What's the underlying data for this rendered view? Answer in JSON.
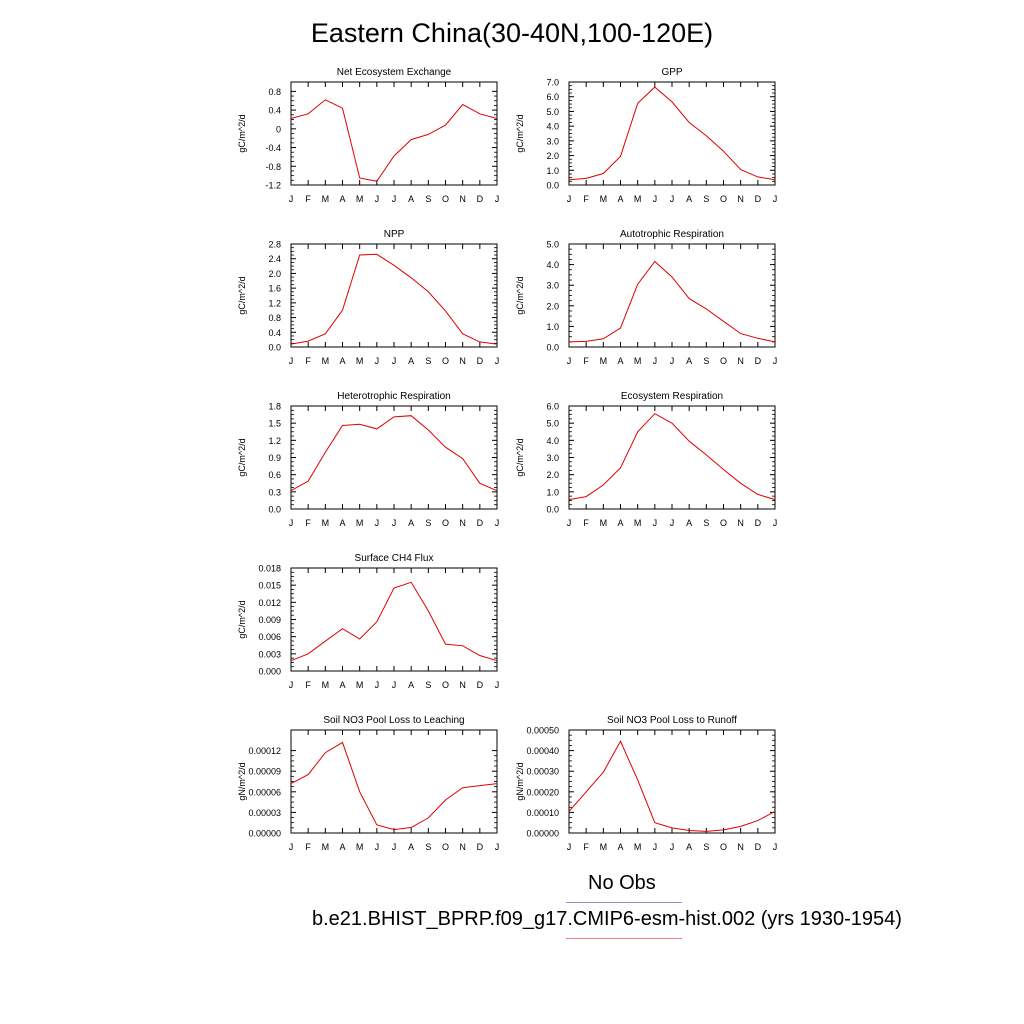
{
  "title": "Eastern China(30-40N,100-120E)",
  "legend": [
    {
      "label": "No Obs",
      "color": "#8f8fd0"
    },
    {
      "label": "b.e21.BHIST_BPRP.f09_g17.CMIP6-esm-hist.002 (yrs 1930-1954)",
      "color": "#f08080"
    }
  ],
  "chart_data": [
    {
      "type": "line",
      "title": "Net Ecosystem Exchange",
      "ylabel": "gC/m^2/d",
      "categories": [
        "J",
        "F",
        "M",
        "A",
        "M",
        "J",
        "J",
        "A",
        "S",
        "O",
        "N",
        "D",
        "J"
      ],
      "ylim": [
        -1.2,
        1.0
      ],
      "yticks": [
        "-1.2",
        "-0.8",
        "-0.4",
        "0",
        "0.4",
        "0.8"
      ],
      "ytick_values": [
        -1.2,
        -0.8,
        -0.4,
        0,
        0.4,
        0.8
      ],
      "series": [
        {
          "color": "#e00000",
          "values": [
            0.22,
            0.32,
            0.62,
            0.44,
            -1.05,
            -1.12,
            -0.58,
            -0.23,
            -0.12,
            0.08,
            0.52,
            0.32,
            0.22
          ]
        }
      ]
    },
    {
      "type": "line",
      "title": "GPP",
      "ylabel": "gC/m^2/d",
      "categories": [
        "J",
        "F",
        "M",
        "A",
        "M",
        "J",
        "J",
        "A",
        "S",
        "O",
        "N",
        "D",
        "J"
      ],
      "ylim": [
        0.0,
        7.0
      ],
      "yticks": [
        "0.0",
        "1.0",
        "2.0",
        "3.0",
        "4.0",
        "5.0",
        "6.0",
        "7.0"
      ],
      "ytick_values": [
        0,
        1,
        2,
        3,
        4,
        5,
        6,
        7
      ],
      "series": [
        {
          "color": "#e00000",
          "values": [
            0.35,
            0.45,
            0.78,
            1.95,
            5.55,
            6.65,
            5.65,
            4.25,
            3.35,
            2.3,
            1.05,
            0.55,
            0.35
          ]
        }
      ]
    },
    {
      "type": "line",
      "title": "NPP",
      "ylabel": "gC/m^2/d",
      "categories": [
        "J",
        "F",
        "M",
        "A",
        "M",
        "J",
        "J",
        "A",
        "S",
        "O",
        "N",
        "D",
        "J"
      ],
      "ylim": [
        0.0,
        2.8
      ],
      "yticks": [
        "0.0",
        "0.4",
        "0.8",
        "1.2",
        "1.6",
        "2.0",
        "2.4",
        "2.8"
      ],
      "ytick_values": [
        0,
        0.4,
        0.8,
        1.2,
        1.6,
        2.0,
        2.4,
        2.8
      ],
      "series": [
        {
          "color": "#e00000",
          "values": [
            0.08,
            0.16,
            0.36,
            1.0,
            2.5,
            2.52,
            2.22,
            1.88,
            1.5,
            0.98,
            0.36,
            0.14,
            0.08
          ]
        }
      ]
    },
    {
      "type": "line",
      "title": "Autotrophic Respiration",
      "ylabel": "gC/m^2/d",
      "categories": [
        "J",
        "F",
        "M",
        "A",
        "M",
        "J",
        "J",
        "A",
        "S",
        "O",
        "N",
        "D",
        "J"
      ],
      "ylim": [
        0.0,
        5.0
      ],
      "yticks": [
        "0.0",
        "1.0",
        "2.0",
        "3.0",
        "4.0",
        "5.0"
      ],
      "ytick_values": [
        0,
        1,
        2,
        3,
        4,
        5
      ],
      "series": [
        {
          "color": "#e00000",
          "values": [
            0.25,
            0.27,
            0.4,
            0.92,
            3.05,
            4.15,
            3.4,
            2.35,
            1.85,
            1.25,
            0.65,
            0.42,
            0.25
          ]
        }
      ]
    },
    {
      "type": "line",
      "title": "Heterotrophic Respiration",
      "ylabel": "gC/m^2/d",
      "categories": [
        "J",
        "F",
        "M",
        "A",
        "M",
        "J",
        "J",
        "A",
        "S",
        "O",
        "N",
        "D",
        "J"
      ],
      "ylim": [
        0.0,
        1.8
      ],
      "yticks": [
        "0.0",
        "0.3",
        "0.6",
        "0.9",
        "1.2",
        "1.5",
        "1.8"
      ],
      "ytick_values": [
        0,
        0.3,
        0.6,
        0.9,
        1.2,
        1.5,
        1.8
      ],
      "series": [
        {
          "color": "#e00000",
          "values": [
            0.32,
            0.49,
            0.99,
            1.46,
            1.48,
            1.4,
            1.61,
            1.63,
            1.38,
            1.08,
            0.88,
            0.45,
            0.32
          ]
        }
      ]
    },
    {
      "type": "line",
      "title": "Ecosystem Respiration",
      "ylabel": "gC/m^2/d",
      "categories": [
        "J",
        "F",
        "M",
        "A",
        "M",
        "J",
        "J",
        "A",
        "S",
        "O",
        "N",
        "D",
        "J"
      ],
      "ylim": [
        0.0,
        6.0
      ],
      "yticks": [
        "0.0",
        "1.0",
        "2.0",
        "3.0",
        "4.0",
        "5.0",
        "6.0"
      ],
      "ytick_values": [
        0,
        1,
        2,
        3,
        4,
        5,
        6
      ],
      "series": [
        {
          "color": "#e00000",
          "values": [
            0.55,
            0.72,
            1.4,
            2.4,
            4.5,
            5.55,
            5.0,
            3.95,
            3.15,
            2.3,
            1.5,
            0.85,
            0.55
          ]
        }
      ]
    },
    {
      "type": "line",
      "title": "Surface CH4 Flux",
      "ylabel": "gC/m^2/d",
      "categories": [
        "J",
        "F",
        "M",
        "A",
        "M",
        "J",
        "J",
        "A",
        "S",
        "O",
        "N",
        "D",
        "J"
      ],
      "ylim": [
        0.0,
        0.018
      ],
      "yticks": [
        "0.000",
        "0.003",
        "0.006",
        "0.009",
        "0.012",
        "0.015",
        "0.018"
      ],
      "ytick_values": [
        0,
        0.003,
        0.006,
        0.009,
        0.012,
        0.015,
        0.018
      ],
      "series": [
        {
          "color": "#e00000",
          "values": [
            0.0018,
            0.003,
            0.0052,
            0.0074,
            0.0056,
            0.0086,
            0.0145,
            0.0155,
            0.0105,
            0.0047,
            0.0044,
            0.0027,
            0.0018
          ]
        }
      ]
    },
    {
      "type": "line",
      "title": "Soil NO3 Pool Loss to Leaching",
      "ylabel": "gN/m^2/d",
      "categories": [
        "J",
        "F",
        "M",
        "A",
        "M",
        "J",
        "J",
        "A",
        "S",
        "O",
        "N",
        "D",
        "J"
      ],
      "ylim": [
        0.0,
        0.00015
      ],
      "yticks": [
        "0.00000",
        "0.00003",
        "0.00006",
        "0.00009",
        "0.00012"
      ],
      "ytick_values": [
        0,
        3e-05,
        6e-05,
        9e-05,
        0.00012
      ],
      "series": [
        {
          "color": "#e00000",
          "values": [
            7.2e-05,
            8.5e-05,
            0.000117,
            0.000132,
            6e-05,
            1.2e-05,
            5e-06,
            8e-06,
            2.2e-05,
            4.8e-05,
            6.6e-05,
            6.9e-05,
            7.2e-05
          ]
        }
      ]
    },
    {
      "type": "line",
      "title": "Soil NO3 Pool Loss to Runoff",
      "ylabel": "gN/m^2/d",
      "categories": [
        "J",
        "F",
        "M",
        "A",
        "M",
        "J",
        "J",
        "A",
        "S",
        "O",
        "N",
        "D",
        "J"
      ],
      "ylim": [
        0.0,
        0.0005
      ],
      "yticks": [
        "0.00000",
        "0.00010",
        "0.00020",
        "0.00030",
        "0.00040",
        "0.00050"
      ],
      "ytick_values": [
        0,
        0.0001,
        0.0002,
        0.0003,
        0.0004,
        0.0005
      ],
      "series": [
        {
          "color": "#e00000",
          "values": [
            0.000105,
            0.0002,
            0.000295,
            0.000445,
            0.000258,
            5e-05,
            2.5e-05,
            1.2e-05,
            8e-06,
            1.5e-05,
            3.2e-05,
            6e-05,
            0.000105
          ]
        }
      ]
    }
  ]
}
